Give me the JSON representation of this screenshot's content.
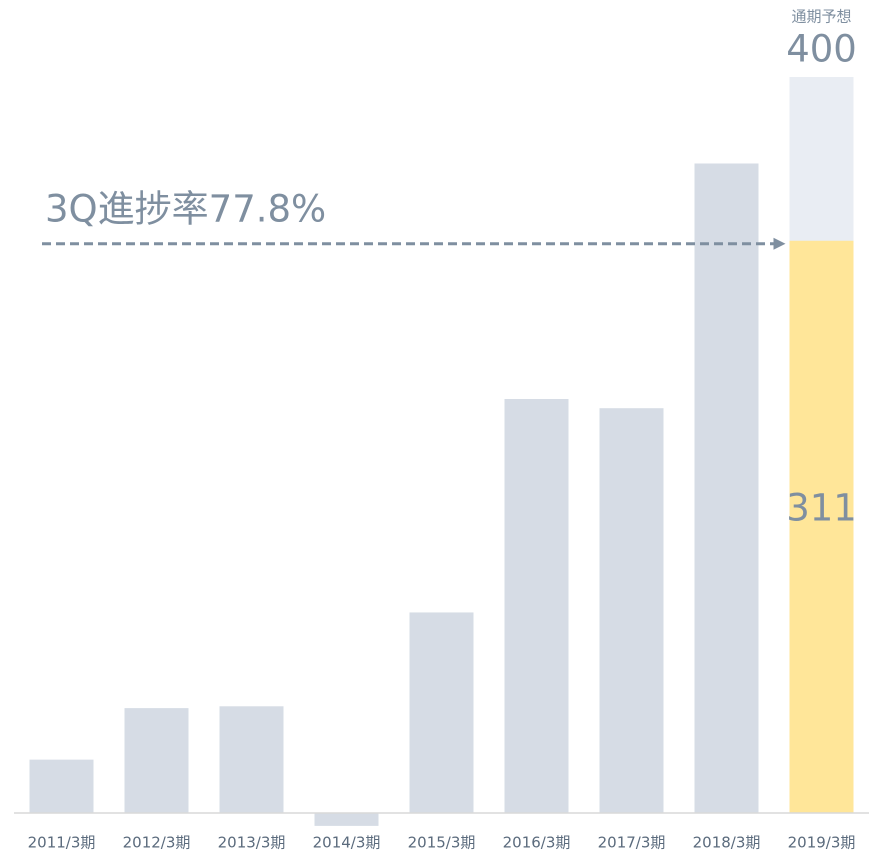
{
  "chart_data": {
    "type": "bar",
    "categories": [
      "2011/3期",
      "2012/3期",
      "2013/3期",
      "2014/3期",
      "2015/3期",
      "2016/3期",
      "2017/3期",
      "2018/3期",
      "2019/3期"
    ],
    "values": [
      29,
      57,
      58,
      -7,
      109,
      225,
      220,
      353,
      311
    ],
    "colors": [
      "#d6dce5",
      "#d6dce5",
      "#d6dce5",
      "#d6dce5",
      "#d6dce5",
      "#d6dce5",
      "#d6dce5",
      "#d6dce5",
      "#ffe699"
    ],
    "forecast": {
      "label": "通期予想",
      "value": 400,
      "color": "#e9edf3"
    },
    "annotation": "3Q進捗率77.8%",
    "annotation_color": "#7f8fa0"
  }
}
